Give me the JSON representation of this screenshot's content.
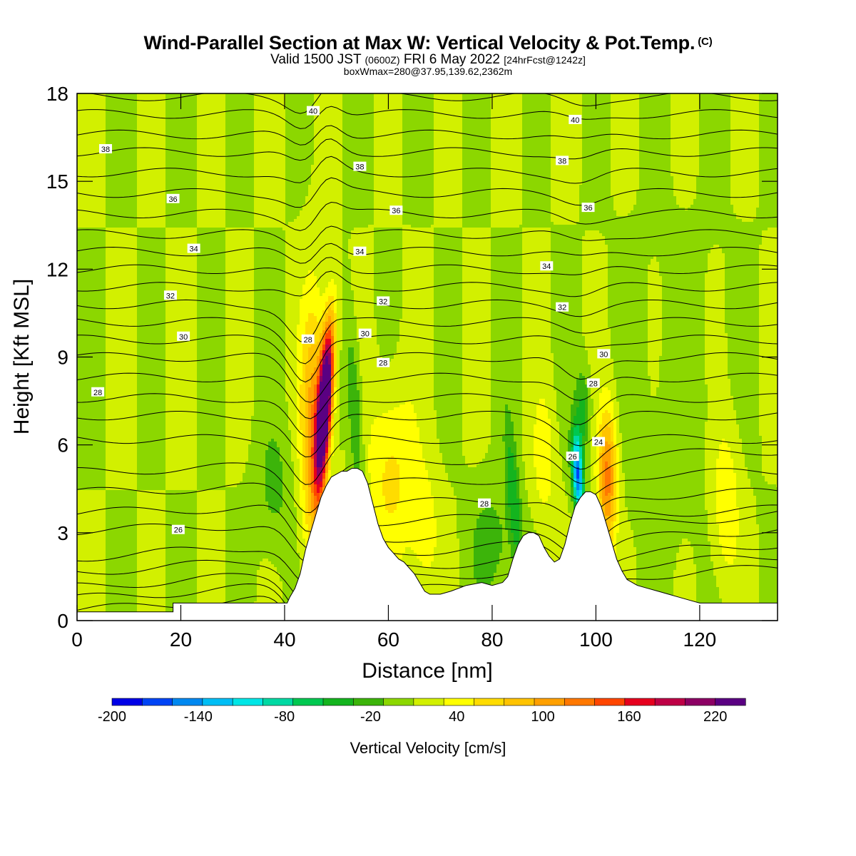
{
  "chart_data": {
    "type": "heatmap",
    "title": "Wind-Parallel Section at Max W: Vertical Velocity & Pot.Temp.",
    "title_mark": "(C)",
    "subtitle_main_a": "Valid 1500 JST",
    "subtitle_main_small": "(0600Z)",
    "subtitle_main_b": "FRI 6 May 2022",
    "subtitle_bracket": "[24hrFcst@1242z]",
    "subtitle2": "boxWmax=280@37.95,139.62,2362m",
    "xlabel": "Distance [nm]",
    "ylabel": "Height [Kft MSL]",
    "xlim": [
      0,
      135
    ],
    "ylim": [
      0,
      18
    ],
    "xticks": [
      0,
      20,
      40,
      60,
      80,
      100,
      120
    ],
    "yticks": [
      0,
      3,
      6,
      9,
      12,
      15,
      18
    ],
    "colorbar": {
      "label": "Vertical Velocity [cm/s]",
      "tick_labels": [
        -200,
        -140,
        -80,
        -20,
        40,
        100,
        160,
        220
      ],
      "levels": [
        -200,
        -180,
        -160,
        -140,
        -120,
        -100,
        -80,
        -60,
        -40,
        -20,
        0,
        20,
        40,
        60,
        80,
        100,
        120,
        140,
        160,
        180,
        200,
        220
      ],
      "colors": [
        "#0000e6",
        "#0044f5",
        "#0088f0",
        "#00bef5",
        "#00e6e6",
        "#00d9a3",
        "#00c850",
        "#14b41e",
        "#3cb40a",
        "#8cd700",
        "#d2f000",
        "#ffff00",
        "#ffdc00",
        "#ffc300",
        "#ffa000",
        "#ff7800",
        "#ff4600",
        "#e6001e",
        "#be0046",
        "#8c0064",
        "#5a0082"
      ]
    },
    "theta_contour_labels": [
      {
        "value": "40",
        "x": 45.5,
        "y": 17.4
      },
      {
        "value": "40",
        "x": 96,
        "y": 17.1
      },
      {
        "value": "38",
        "x": 5.5,
        "y": 16.1
      },
      {
        "value": "38",
        "x": 54.5,
        "y": 15.5
      },
      {
        "value": "38",
        "x": 93.5,
        "y": 15.7
      },
      {
        "value": "36",
        "x": 18.5,
        "y": 14.4
      },
      {
        "value": "36",
        "x": 61.5,
        "y": 14.0
      },
      {
        "value": "36",
        "x": 98.5,
        "y": 14.1
      },
      {
        "value": "34",
        "x": 22.5,
        "y": 12.7
      },
      {
        "value": "34",
        "x": 54.5,
        "y": 12.6
      },
      {
        "value": "34",
        "x": 90.5,
        "y": 12.1
      },
      {
        "value": "32",
        "x": 18,
        "y": 11.1
      },
      {
        "value": "32",
        "x": 59,
        "y": 10.9
      },
      {
        "value": "32",
        "x": 93.5,
        "y": 10.7
      },
      {
        "value": "30",
        "x": 20.5,
        "y": 9.7
      },
      {
        "value": "30",
        "x": 55.5,
        "y": 9.8
      },
      {
        "value": "30",
        "x": 101.5,
        "y": 9.1
      },
      {
        "value": "28",
        "x": 4,
        "y": 7.8
      },
      {
        "value": "28",
        "x": 44.5,
        "y": 9.6
      },
      {
        "value": "28",
        "x": 59,
        "y": 8.8
      },
      {
        "value": "28",
        "x": 99.5,
        "y": 8.1
      },
      {
        "value": "28",
        "x": 78.5,
        "y": 4.0
      },
      {
        "value": "26",
        "x": 19.5,
        "y": 3.1
      },
      {
        "value": "26",
        "x": 95.5,
        "y": 5.6
      },
      {
        "value": "24",
        "x": 100.5,
        "y": 6.1
      }
    ],
    "terrain": [
      [
        0,
        0.3
      ],
      [
        18.5,
        0.3
      ],
      [
        18.5,
        0.6
      ],
      [
        40.5,
        0.6
      ],
      [
        41,
        0.8
      ],
      [
        42,
        1.1
      ],
      [
        43,
        1.6
      ],
      [
        44,
        2.4
      ],
      [
        45,
        3.0
      ],
      [
        46,
        3.6
      ],
      [
        47,
        4.2
      ],
      [
        48,
        4.6
      ],
      [
        49,
        4.9
      ],
      [
        50,
        5.0
      ],
      [
        51,
        5.1
      ],
      [
        52,
        5.1
      ],
      [
        53,
        5.2
      ],
      [
        54,
        5.2
      ],
      [
        55,
        5.1
      ],
      [
        56,
        4.7
      ],
      [
        57,
        4.0
      ],
      [
        58,
        3.3
      ],
      [
        59,
        2.8
      ],
      [
        60,
        2.5
      ],
      [
        61,
        2.3
      ],
      [
        62,
        2.1
      ],
      [
        63,
        2.0
      ],
      [
        64,
        1.8
      ],
      [
        65,
        1.6
      ],
      [
        66,
        1.3
      ],
      [
        67,
        1.0
      ],
      [
        68,
        0.9
      ],
      [
        70,
        0.9
      ],
      [
        72,
        1.0
      ],
      [
        75,
        1.2
      ],
      [
        78,
        1.3
      ],
      [
        80,
        1.2
      ],
      [
        82,
        1.3
      ],
      [
        83,
        1.5
      ],
      [
        84,
        2.1
      ],
      [
        85,
        2.6
      ],
      [
        86,
        2.9
      ],
      [
        87,
        3.0
      ],
      [
        88,
        3.0
      ],
      [
        89,
        2.9
      ],
      [
        90,
        2.5
      ],
      [
        91,
        2.2
      ],
      [
        92,
        2.0
      ],
      [
        93,
        2.1
      ],
      [
        94,
        2.6
      ],
      [
        95,
        3.3
      ],
      [
        96,
        3.9
      ],
      [
        97,
        4.2
      ],
      [
        98,
        4.4
      ],
      [
        99,
        4.4
      ],
      [
        100,
        4.3
      ],
      [
        101,
        3.9
      ],
      [
        102,
        3.3
      ],
      [
        103,
        2.7
      ],
      [
        104,
        2.1
      ],
      [
        105,
        1.7
      ],
      [
        106,
        1.4
      ],
      [
        107,
        1.3
      ],
      [
        108,
        1.2
      ],
      [
        110,
        1.1
      ],
      [
        112,
        1.0
      ],
      [
        114,
        0.9
      ],
      [
        116,
        0.8
      ],
      [
        118,
        0.7
      ],
      [
        120,
        0.6
      ],
      [
        135,
        0.6
      ]
    ]
  }
}
